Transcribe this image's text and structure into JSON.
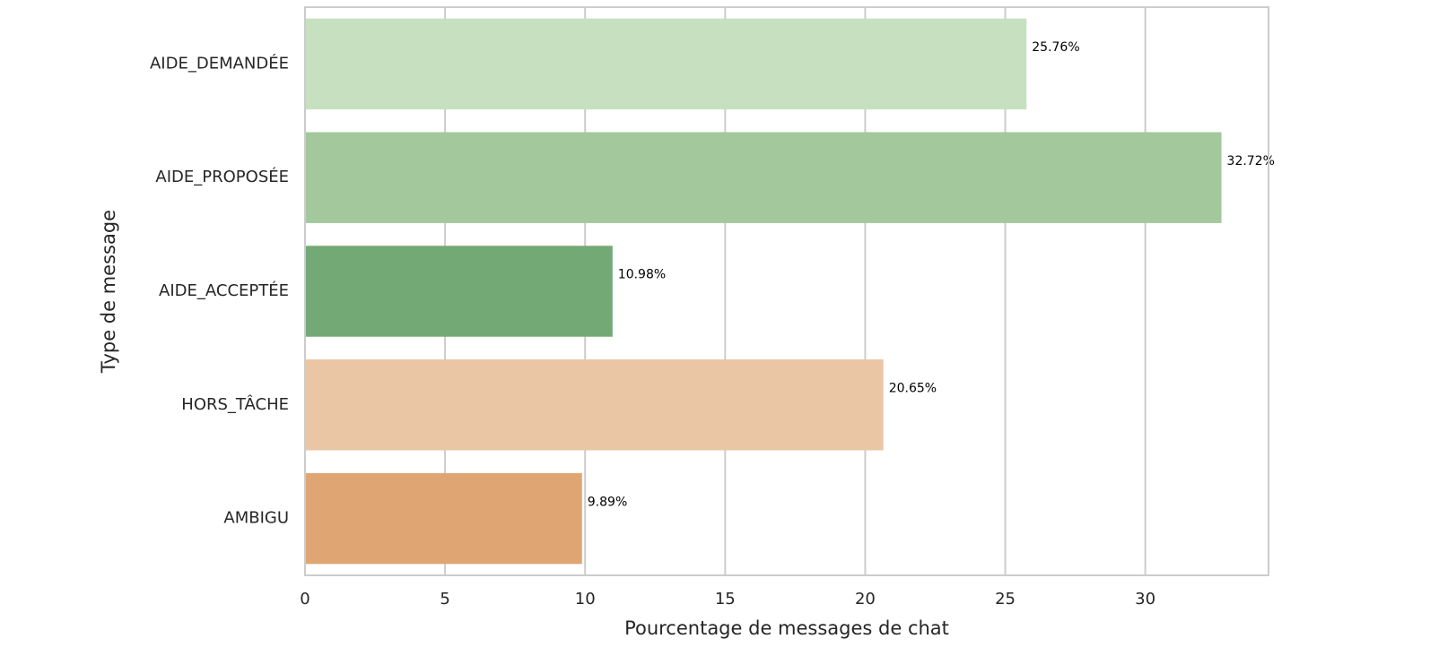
{
  "chart_data": {
    "type": "bar",
    "orientation": "horizontal",
    "title": "",
    "xlabel": "Pourcentage de messages de chat",
    "ylabel": "Type de message",
    "categories": [
      "AIDE_DEMANDÉE",
      "AIDE_PROPOSÉE",
      "AIDE_ACCEPTÉE",
      "HORS_TÂCHE",
      "AMBIGU"
    ],
    "values": [
      25.76,
      32.72,
      10.98,
      20.65,
      9.89
    ],
    "data_labels": [
      "25.76%",
      "32.72%",
      "10.98%",
      "20.65%",
      "9.89%"
    ],
    "colors": [
      "#c7e0c0",
      "#a2c89b",
      "#72a974",
      "#eac6a4",
      "#dfa674"
    ],
    "xlim": [
      0,
      34.4
    ],
    "xticks": [
      0,
      5,
      10,
      15,
      20,
      25,
      30
    ],
    "grid": true,
    "grid_axis": "x"
  },
  "style": {
    "grid_color": "#cccccc",
    "frame_color": "#cccccc"
  }
}
